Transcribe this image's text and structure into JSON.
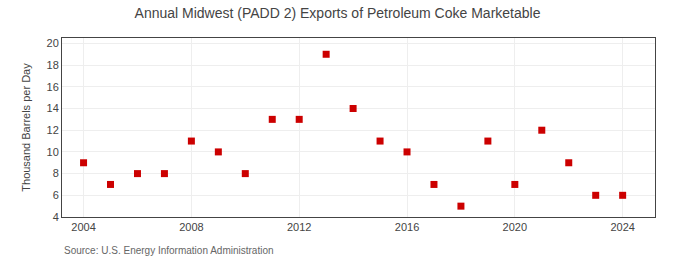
{
  "chart_data": {
    "type": "scatter",
    "title": "Annual Midwest (PADD 2) Exports of Petroleum Coke Marketable",
    "y_label": "Thousand Barrels per Day",
    "annotations": [
      "Source: U.S. Energy Information Administration"
    ],
    "x": [
      2004,
      2005,
      2006,
      2007,
      2008,
      2009,
      2010,
      2011,
      2012,
      2013,
      2014,
      2015,
      2016,
      2017,
      2018,
      2019,
      2020,
      2021,
      2022,
      2023,
      2024
    ],
    "values": [
      9,
      7,
      8,
      8,
      11,
      10,
      8,
      13,
      13,
      19,
      14,
      11,
      10,
      7,
      5,
      11,
      7,
      12,
      9,
      6,
      6
    ],
    "color": "#cc0000",
    "marker": "square",
    "xlim": [
      2003.2,
      2025.2
    ],
    "ylim": [
      4,
      20.5
    ],
    "xticks": [
      2004,
      2008,
      2012,
      2016,
      2020,
      2024
    ],
    "yticks": [
      4,
      6,
      8,
      10,
      12,
      14,
      16,
      18,
      20
    ],
    "grid": true
  }
}
